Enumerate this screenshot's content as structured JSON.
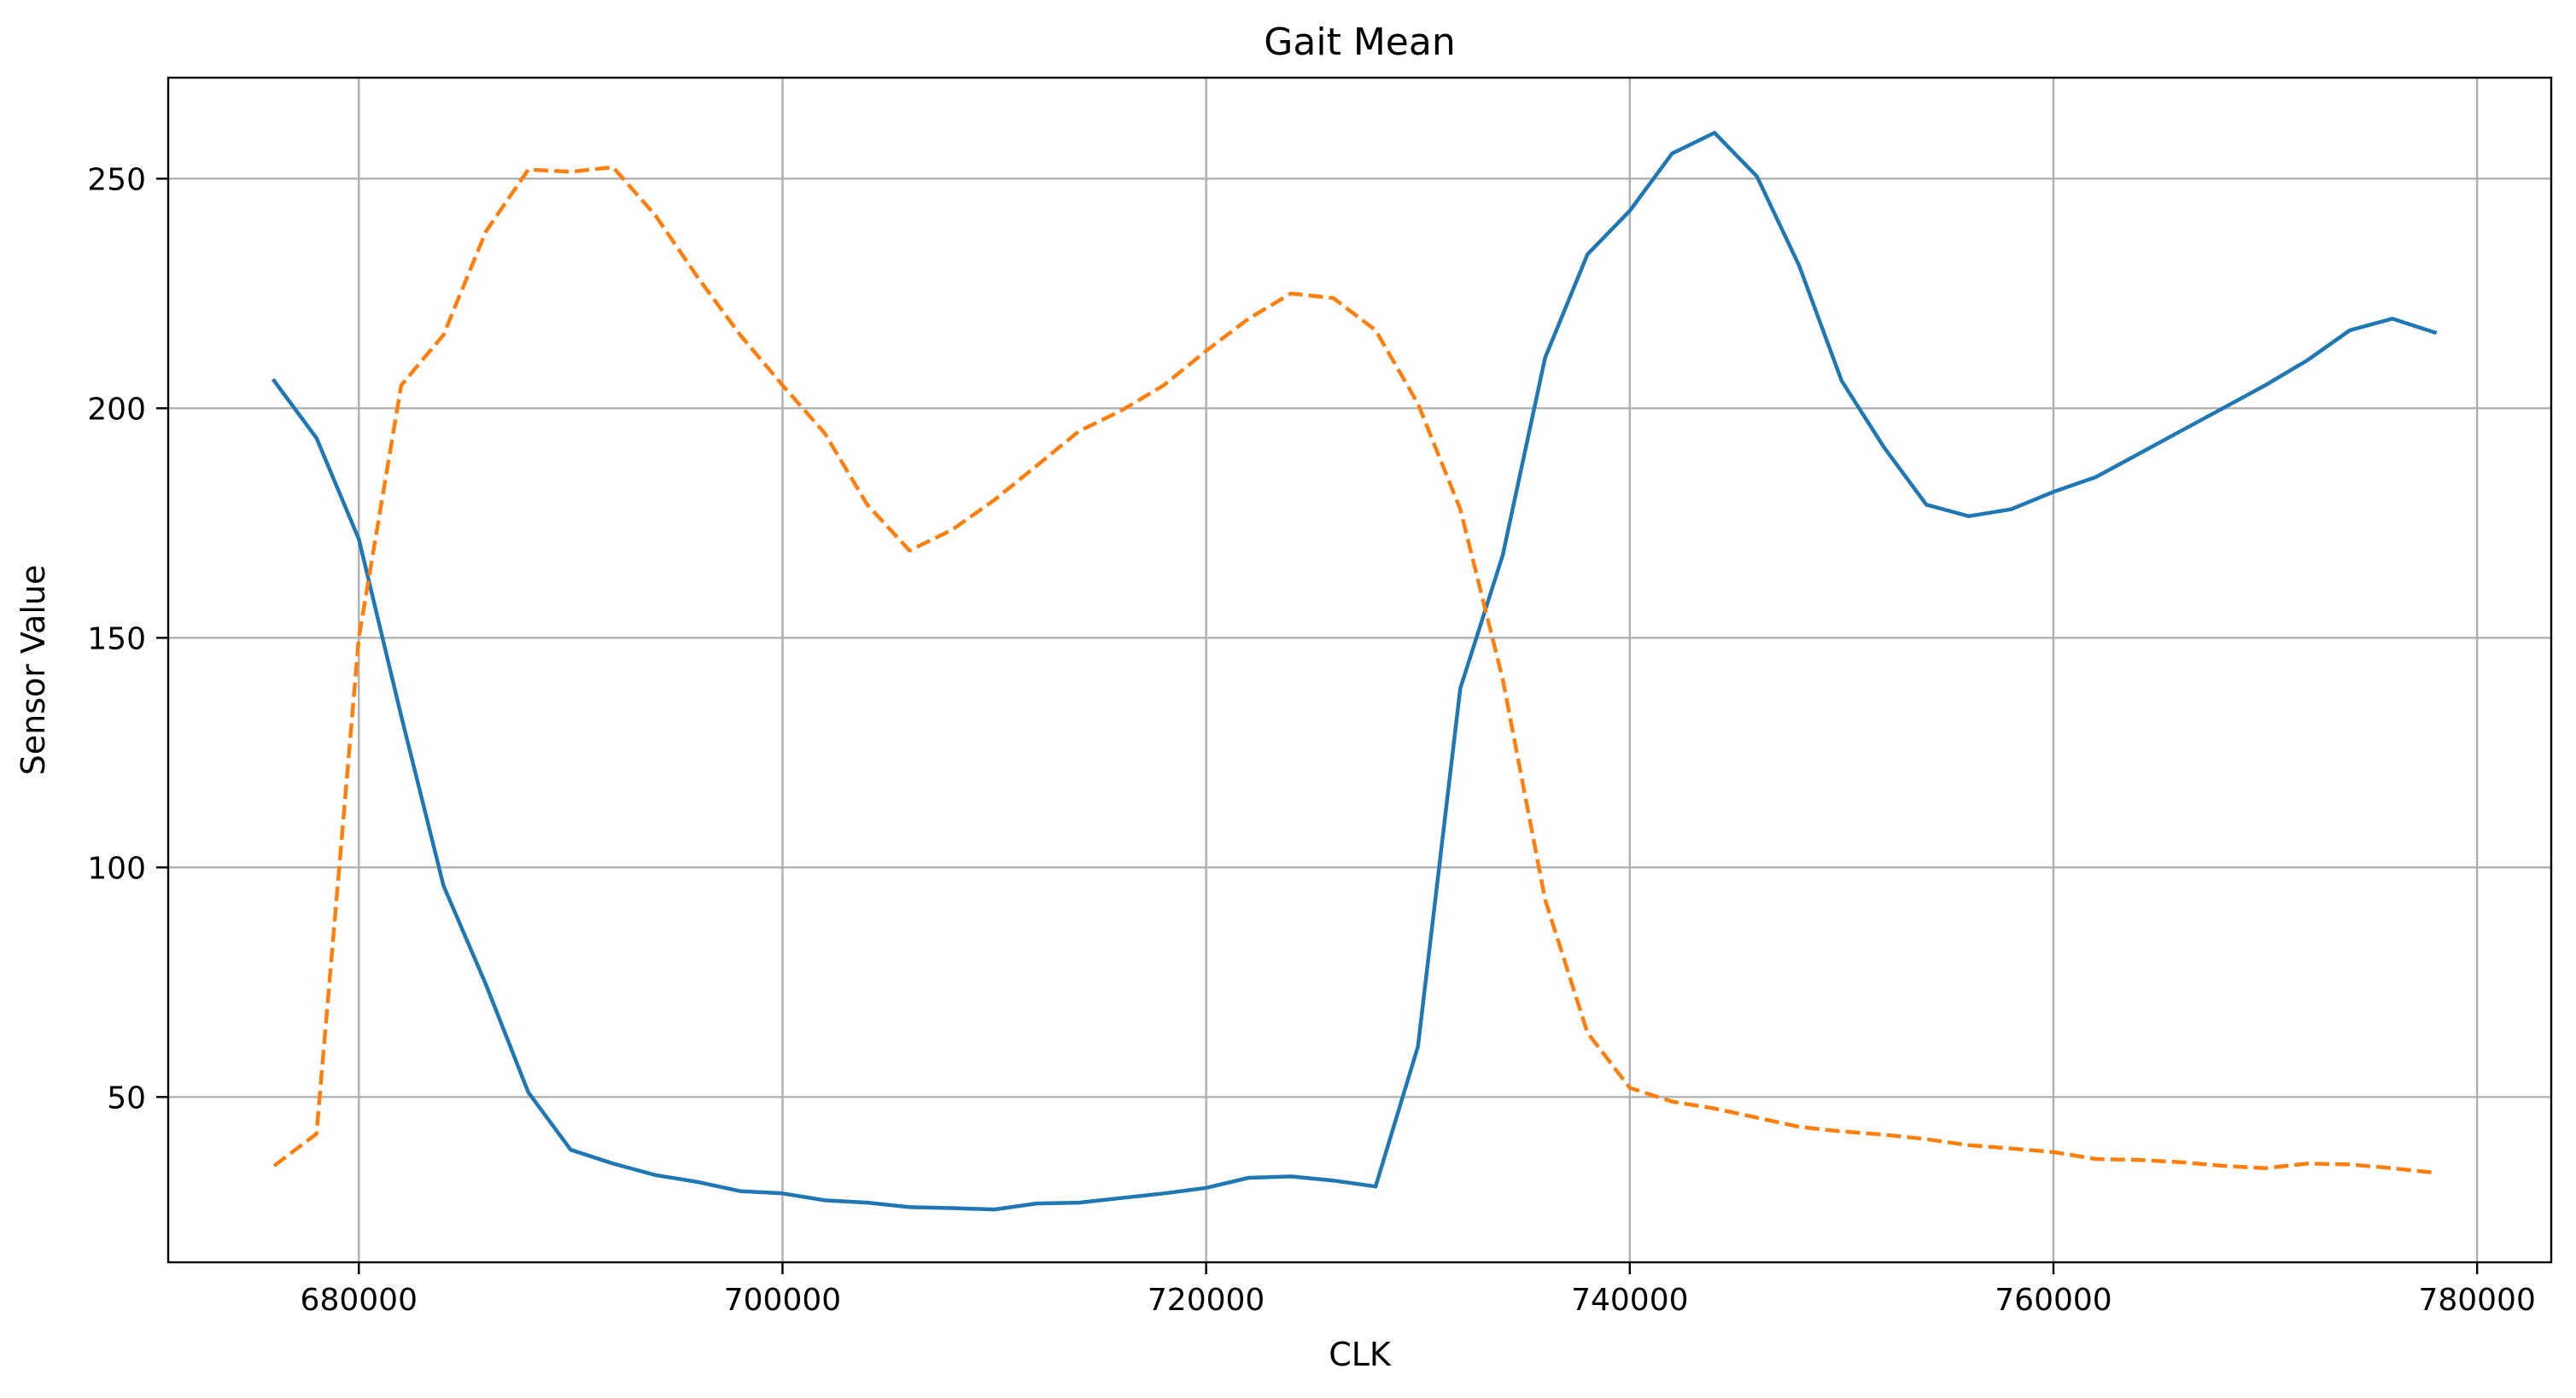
{
  "chart_data": {
    "type": "line",
    "title": "Gait Mean",
    "xlabel": "CLK",
    "ylabel": "Sensor Value",
    "xlim": [
      671000,
      783500
    ],
    "ylim": [
      14,
      272
    ],
    "xticks": [
      680000,
      700000,
      720000,
      740000,
      760000,
      780000
    ],
    "yticks": [
      50,
      100,
      150,
      200,
      250
    ],
    "xtick_labels": [
      "680000",
      "700000",
      "720000",
      "740000",
      "760000",
      "780000"
    ],
    "ytick_labels": [
      "50",
      "100",
      "150",
      "200",
      "250"
    ],
    "grid": true,
    "legend": null,
    "series": [
      {
        "color": "#1f77b4",
        "linestyle": "solid",
        "x": [
          676000,
          678000,
          680000,
          682000,
          684000,
          686000,
          688000,
          690000,
          692000,
          694000,
          696000,
          698000,
          700000,
          702000,
          704000,
          706000,
          708000,
          710000,
          712000,
          714000,
          716000,
          718000,
          720000,
          722000,
          724000,
          726000,
          728000,
          730000,
          732000,
          734000,
          736000,
          738000,
          740000,
          742000,
          744000,
          746000,
          748000,
          750000,
          752000,
          754000,
          756000,
          758000,
          760000,
          762000,
          764000,
          766000,
          768000,
          770000,
          772000,
          774000,
          776000,
          778000
        ],
        "y": [
          206,
          193.5,
          171.5,
          133,
          96,
          74.5,
          51,
          38.5,
          35.5,
          33,
          31.5,
          29.5,
          29,
          27.5,
          27,
          26,
          25.8,
          25.5,
          26.8,
          27,
          28,
          29,
          30.2,
          32.4,
          32.7,
          31.8,
          30.5,
          61,
          139,
          168,
          211,
          233.5,
          243,
          255.5,
          260,
          250.5,
          231,
          206,
          191.5,
          179,
          176.5,
          178,
          181.8,
          185,
          190,
          195,
          200,
          205,
          210.5,
          217,
          219.5,
          216.5
        ]
      },
      {
        "color": "#ff7f0e",
        "linestyle": "dashed",
        "x": [
          676000,
          678000,
          680000,
          682000,
          684000,
          686000,
          688000,
          690000,
          692000,
          694000,
          696000,
          698000,
          700000,
          702000,
          704000,
          706000,
          708000,
          710000,
          712000,
          714000,
          716000,
          718000,
          720000,
          722000,
          724000,
          726000,
          728000,
          730000,
          732000,
          734000,
          736000,
          738000,
          740000,
          742000,
          744000,
          746000,
          748000,
          750000,
          752000,
          754000,
          756000,
          758000,
          760000,
          762000,
          764000,
          766000,
          768000,
          770000,
          772000,
          774000,
          776000,
          778000
        ],
        "y": [
          35,
          42,
          150,
          205,
          216,
          238.5,
          252,
          251.5,
          252.5,
          242,
          228.5,
          216,
          205,
          194.5,
          179,
          169,
          173.5,
          180,
          187.5,
          195,
          199.5,
          205,
          212.5,
          219.5,
          225,
          224,
          217,
          201,
          178,
          141,
          93,
          64,
          52,
          49,
          47.5,
          45.5,
          43.5,
          42.5,
          41.8,
          40.8,
          39.5,
          38.8,
          38,
          36.5,
          36.3,
          35.8,
          35,
          34.5,
          35.5,
          35.3,
          34.5,
          33.5
        ]
      }
    ]
  }
}
